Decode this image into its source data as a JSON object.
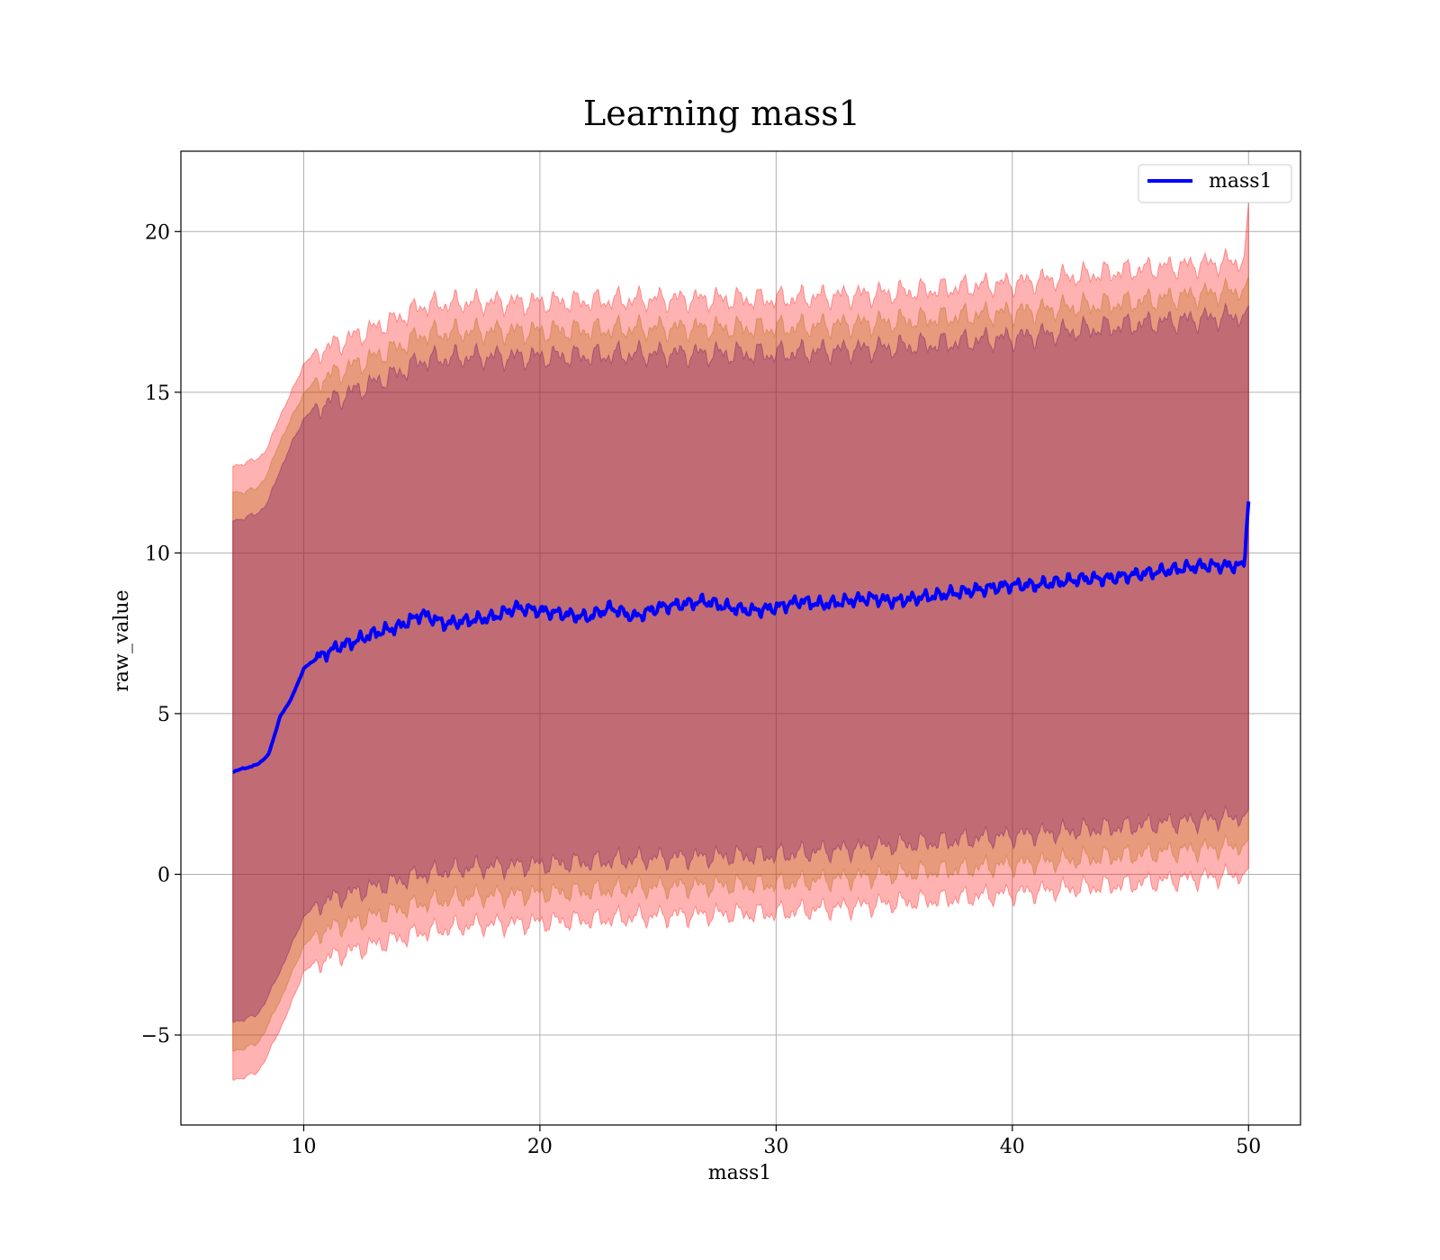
{
  "chart_data": {
    "type": "line",
    "title": "Learning mass1",
    "xlabel": "mass1",
    "ylabel": "raw_value",
    "xlim": [
      4.8,
      52.2
    ],
    "ylim": [
      -7.8,
      22.5
    ],
    "xticks": [
      10,
      20,
      30,
      40,
      50
    ],
    "xtick_labels": [
      "10",
      "20",
      "30",
      "40",
      "50"
    ],
    "yticks": [
      -5,
      0,
      5,
      10,
      15,
      20
    ],
    "ytick_labels": [
      "−5",
      "0",
      "5",
      "10",
      "15",
      "20"
    ],
    "grid": true,
    "legend_position": "top-right",
    "series": [
      {
        "name": "mass1",
        "color": "#0000ff",
        "x": [
          7,
          7.5,
          8,
          8.5,
          9,
          9.5,
          10,
          10.5,
          11,
          11.5,
          12,
          13,
          14,
          15,
          16,
          17,
          18,
          19,
          20,
          21,
          22,
          23,
          24,
          25,
          26,
          27,
          28,
          29,
          30,
          31,
          32,
          33,
          34,
          35,
          36,
          37,
          38,
          39,
          40,
          41,
          42,
          43,
          44,
          45,
          46,
          47,
          48,
          49,
          49.8,
          50
        ],
        "y": [
          3.2,
          3.3,
          3.4,
          3.7,
          4.9,
          5.5,
          6.4,
          6.7,
          6.9,
          7.1,
          7.2,
          7.5,
          7.7,
          8.1,
          7.8,
          7.9,
          8.0,
          8.3,
          8.2,
          8.1,
          8.0,
          8.3,
          8.0,
          8.3,
          8.4,
          8.5,
          8.3,
          8.2,
          8.3,
          8.5,
          8.4,
          8.5,
          8.6,
          8.5,
          8.6,
          8.7,
          8.8,
          8.9,
          9.0,
          9.0,
          9.1,
          9.2,
          9.2,
          9.3,
          9.4,
          9.5,
          9.6,
          9.6,
          9.6,
          11.6
        ]
      }
    ],
    "bands": [
      {
        "color": "#ff0000",
        "opacity": 0.3,
        "x": [
          7,
          7.5,
          8,
          8.5,
          9,
          9.5,
          10,
          10.5,
          11,
          12,
          13,
          14,
          15,
          17,
          20,
          25,
          30,
          35,
          40,
          45,
          49.8,
          50
        ],
        "upper": [
          12.7,
          12.8,
          12.9,
          13.3,
          14.3,
          15.0,
          15.9,
          16.2,
          16.4,
          16.7,
          17.0,
          17.3,
          17.7,
          17.8,
          17.8,
          17.9,
          17.9,
          18.1,
          18.4,
          18.8,
          19.1,
          20.9
        ],
        "lower": [
          -6.4,
          -6.3,
          -6.2,
          -5.6,
          -4.8,
          -4.0,
          -3.0,
          -2.8,
          -2.6,
          -2.4,
          -2.2,
          -2.0,
          -1.8,
          -1.6,
          -1.5,
          -1.3,
          -1.2,
          -0.9,
          -0.6,
          -0.3,
          0.0,
          0.2
        ]
      },
      {
        "color": "#b26300",
        "opacity": 0.3,
        "x": [
          7,
          7.5,
          8,
          8.5,
          9,
          9.5,
          10,
          10.5,
          11,
          12,
          13,
          14,
          15,
          17,
          20,
          25,
          30,
          35,
          40,
          45,
          49.8,
          50
        ],
        "upper": [
          11.9,
          11.9,
          12.0,
          12.5,
          13.5,
          14.2,
          15.0,
          15.3,
          15.5,
          15.8,
          16.1,
          16.4,
          16.8,
          16.9,
          16.9,
          17.0,
          17.0,
          17.2,
          17.5,
          17.8,
          18.2,
          18.6
        ],
        "lower": [
          -5.5,
          -5.4,
          -5.3,
          -4.7,
          -3.9,
          -3.1,
          -2.2,
          -1.9,
          -1.7,
          -1.5,
          -1.3,
          -1.1,
          -0.9,
          -0.7,
          -0.6,
          -0.4,
          -0.3,
          0.0,
          0.3,
          0.6,
          0.9,
          1.1
        ]
      },
      {
        "color": "#660066",
        "opacity": 0.3,
        "x": [
          7,
          7.5,
          8,
          8.5,
          9,
          9.5,
          10,
          10.5,
          11,
          12,
          13,
          14,
          15,
          17,
          20,
          25,
          30,
          35,
          40,
          45,
          49.8,
          50
        ],
        "upper": [
          11.0,
          11.1,
          11.2,
          11.6,
          12.6,
          13.4,
          14.2,
          14.5,
          14.7,
          15.0,
          15.3,
          15.6,
          16.0,
          16.1,
          16.1,
          16.2,
          16.2,
          16.4,
          16.7,
          17.1,
          17.4,
          17.7
        ],
        "lower": [
          -4.6,
          -4.5,
          -4.4,
          -3.8,
          -3.0,
          -2.2,
          -1.3,
          -1.0,
          -0.8,
          -0.6,
          -0.4,
          -0.2,
          0.0,
          0.2,
          0.3,
          0.5,
          0.6,
          0.9,
          1.2,
          1.5,
          1.8,
          2.0
        ]
      }
    ]
  }
}
